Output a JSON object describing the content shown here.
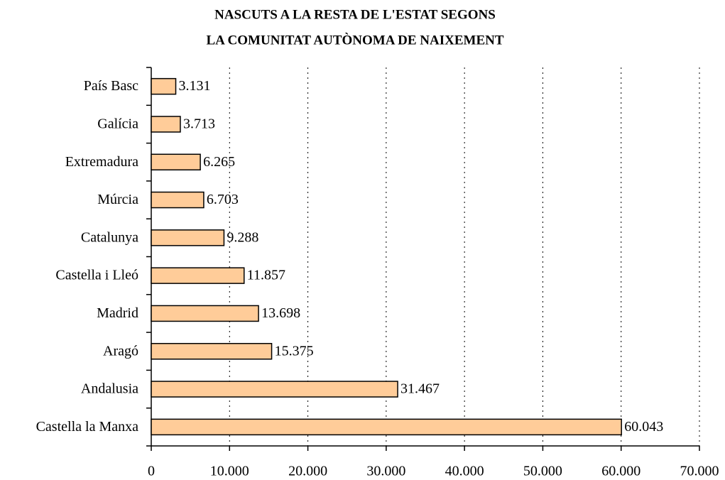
{
  "chart_data": {
    "type": "barh",
    "title": [
      "NASCUTS A LA RESTA DE L'ESTAT SEGONS",
      "LA COMUNITAT AUTÒNOMA DE NAIXEMENT"
    ],
    "categories": [
      "País Basc",
      "Galícia",
      "Extremadura",
      "Múrcia",
      "Catalunya",
      "Castella i Lleó",
      "Madrid",
      "Aragó",
      "Andalusia",
      "Castella la Manxa"
    ],
    "values": [
      3131,
      3713,
      6265,
      6703,
      9288,
      11857,
      13698,
      15375,
      31467,
      60043
    ],
    "value_labels": [
      "3.131",
      "3.713",
      "6.265",
      "6.703",
      "9.288",
      "11.857",
      "13.698",
      "15.375",
      "31.467",
      "60.043"
    ],
    "color": "#ffcc99",
    "xlim": [
      0,
      70000
    ],
    "xticks": [
      0,
      {
        "value": 10000,
        "label": "10.000"
      },
      {
        "value": 20000,
        "label": "20.000"
      },
      {
        "value": 30000,
        "label": "30.000"
      },
      {
        "value": 40000,
        "label": "40.000"
      },
      {
        "value": 50000,
        "label": "50.000"
      },
      {
        "value": 60000,
        "label": "60.000"
      },
      {
        "value": 70000,
        "label": "70.000"
      }
    ],
    "grid": true
  }
}
